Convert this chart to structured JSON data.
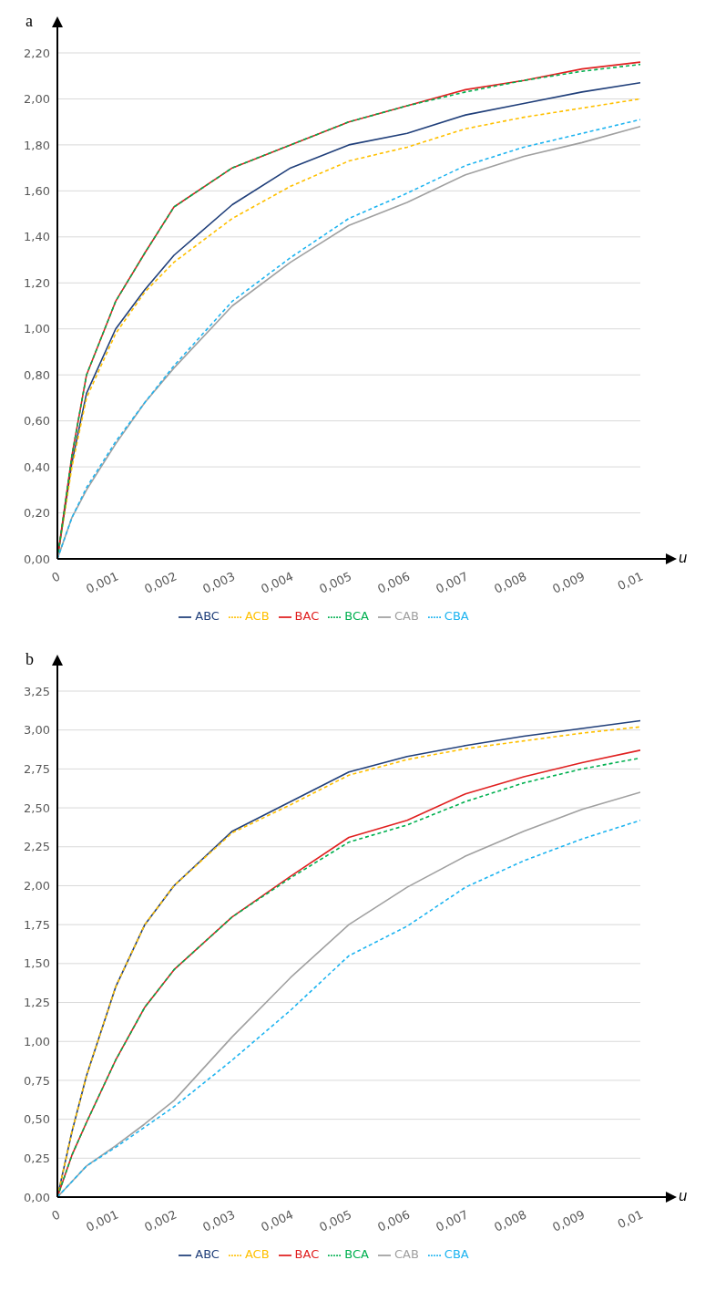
{
  "chart_data": [
    {
      "type": "line",
      "title": "a",
      "xlabel": "u",
      "x": [
        0,
        0.00025,
        0.0005,
        0.001,
        0.0015,
        0.002,
        0.003,
        0.004,
        0.005,
        0.006,
        0.007,
        0.008,
        0.009,
        0.01
      ],
      "xlim": [
        0,
        0.01
      ],
      "xticks": [
        0,
        {
          "value": 0.001,
          "label": "0,001"
        },
        {
          "value": 0.002,
          "label": "0,002"
        },
        {
          "value": 0.003,
          "label": "0,003"
        },
        {
          "value": 0.004,
          "label": "0,004"
        },
        {
          "value": 0.005,
          "label": "0,005"
        },
        {
          "value": 0.006,
          "label": "0,006"
        },
        {
          "value": 0.007,
          "label": "0,007"
        },
        {
          "value": 0.008,
          "label": "0,008"
        },
        {
          "value": 0.009,
          "label": "0,009"
        },
        {
          "value": 0.01,
          "label": "0,01"
        }
      ],
      "ylim": [
        0,
        2.2
      ],
      "yticks": [
        {
          "value": 0,
          "label": "0,00"
        },
        {
          "value": 0.2,
          "label": "0,20"
        },
        {
          "value": 0.4,
          "label": "0,40"
        },
        {
          "value": 0.6,
          "label": "0,60"
        },
        {
          "value": 0.8,
          "label": "0,80"
        },
        {
          "value": 1,
          "label": "1,00"
        },
        {
          "value": 1.2,
          "label": "1,20"
        },
        {
          "value": 1.4,
          "label": "1,40"
        },
        {
          "value": 1.6,
          "label": "1,60"
        },
        {
          "value": 1.8,
          "label": "1,80"
        },
        {
          "value": 2,
          "label": "2,00"
        },
        {
          "value": 2.2,
          "label": "2,20"
        }
      ],
      "grid": "y",
      "legend": "bottom",
      "series": [
        {
          "name": "ABC",
          "color": "#203f7a",
          "line_style": "solid",
          "values": [
            0,
            0.42,
            0.72,
            1.0,
            1.17,
            1.32,
            1.54,
            1.7,
            1.8,
            1.85,
            1.93,
            1.98,
            2.03,
            2.07
          ]
        },
        {
          "name": "ACB",
          "color": "#ffc000",
          "line_style": "dashed",
          "values": [
            0,
            0.4,
            0.7,
            0.98,
            1.16,
            1.29,
            1.48,
            1.62,
            1.73,
            1.79,
            1.87,
            1.92,
            1.96,
            2.0
          ]
        },
        {
          "name": "BAC",
          "color": "#e02020",
          "line_style": "solid",
          "values": [
            0,
            0.45,
            0.8,
            1.12,
            1.33,
            1.53,
            1.7,
            1.8,
            1.9,
            1.97,
            2.04,
            2.08,
            2.13,
            2.16
          ]
        },
        {
          "name": "BCA",
          "color": "#00b050",
          "line_style": "dashed",
          "values": [
            0,
            0.45,
            0.8,
            1.12,
            1.33,
            1.53,
            1.7,
            1.8,
            1.9,
            1.97,
            2.03,
            2.08,
            2.12,
            2.15
          ]
        },
        {
          "name": "CAB",
          "color": "#a0a0a0",
          "line_style": "solid",
          "values": [
            0,
            0.18,
            0.3,
            0.5,
            0.68,
            0.83,
            1.1,
            1.29,
            1.45,
            1.55,
            1.67,
            1.75,
            1.81,
            1.88
          ]
        },
        {
          "name": "CBA",
          "color": "#1eb4f0",
          "line_style": "dashed",
          "values": [
            0,
            0.18,
            0.31,
            0.51,
            0.68,
            0.84,
            1.12,
            1.31,
            1.48,
            1.59,
            1.71,
            1.79,
            1.85,
            1.91
          ]
        }
      ]
    },
    {
      "type": "line",
      "title": "b",
      "xlabel": "u",
      "x": [
        0,
        0.00025,
        0.0005,
        0.001,
        0.0015,
        0.002,
        0.003,
        0.004,
        0.005,
        0.006,
        0.007,
        0.008,
        0.009,
        0.01
      ],
      "xlim": [
        0,
        0.01
      ],
      "xticks": [
        0,
        {
          "value": 0.001,
          "label": "0,001"
        },
        {
          "value": 0.002,
          "label": "0,002"
        },
        {
          "value": 0.003,
          "label": "0,003"
        },
        {
          "value": 0.004,
          "label": "0,004"
        },
        {
          "value": 0.005,
          "label": "0,005"
        },
        {
          "value": 0.006,
          "label": "0,006"
        },
        {
          "value": 0.007,
          "label": "0,007"
        },
        {
          "value": 0.008,
          "label": "0,008"
        },
        {
          "value": 0.009,
          "label": "0,009"
        },
        {
          "value": 0.01,
          "label": "0,01"
        }
      ],
      "ylim": [
        0,
        3.25
      ],
      "yticks": [
        {
          "value": 0,
          "label": "0,00"
        },
        {
          "value": 0.25,
          "label": "0,25"
        },
        {
          "value": 0.5,
          "label": "0,50"
        },
        {
          "value": 0.75,
          "label": "0,75"
        },
        {
          "value": 1,
          "label": "1,00"
        },
        {
          "value": 1.25,
          "label": "1,25"
        },
        {
          "value": 1.5,
          "label": "1,50"
        },
        {
          "value": 1.75,
          "label": "1,75"
        },
        {
          "value": 2,
          "label": "2,00"
        },
        {
          "value": 2.25,
          "label": "2,25"
        },
        {
          "value": 2.5,
          "label": "2,50"
        },
        {
          "value": 2.75,
          "label": "2,75"
        },
        {
          "value": 3,
          "label": "3,00"
        },
        {
          "value": 3.25,
          "label": "3,25"
        }
      ],
      "grid": "y",
      "legend": "bottom",
      "series": [
        {
          "name": "ABC",
          "color": "#203f7a",
          "line_style": "solid",
          "values": [
            0,
            0.42,
            0.78,
            1.35,
            1.75,
            2.0,
            2.35,
            2.54,
            2.73,
            2.83,
            2.9,
            2.96,
            3.01,
            3.06
          ]
        },
        {
          "name": "ACB",
          "color": "#ffc000",
          "line_style": "dashed",
          "values": [
            0,
            0.42,
            0.78,
            1.35,
            1.75,
            2.0,
            2.34,
            2.52,
            2.71,
            2.81,
            2.88,
            2.93,
            2.98,
            3.02
          ]
        },
        {
          "name": "BAC",
          "color": "#e02020",
          "line_style": "solid",
          "values": [
            0,
            0.27,
            0.48,
            0.88,
            1.22,
            1.46,
            1.8,
            2.06,
            2.31,
            2.42,
            2.59,
            2.7,
            2.79,
            2.87
          ]
        },
        {
          "name": "BCA",
          "color": "#00b050",
          "line_style": "dashed",
          "values": [
            0,
            0.27,
            0.48,
            0.88,
            1.22,
            1.46,
            1.8,
            2.05,
            2.28,
            2.39,
            2.54,
            2.66,
            2.75,
            2.82
          ]
        },
        {
          "name": "CAB",
          "color": "#a0a0a0",
          "line_style": "solid",
          "values": [
            0,
            0.1,
            0.2,
            0.33,
            0.47,
            0.62,
            1.03,
            1.41,
            1.75,
            1.99,
            2.19,
            2.35,
            2.49,
            2.6
          ]
        },
        {
          "name": "CBA",
          "color": "#1eb4f0",
          "line_style": "dashed",
          "values": [
            0,
            0.1,
            0.2,
            0.32,
            0.45,
            0.58,
            0.88,
            1.2,
            1.55,
            1.74,
            1.99,
            2.16,
            2.3,
            2.42
          ]
        }
      ]
    }
  ]
}
